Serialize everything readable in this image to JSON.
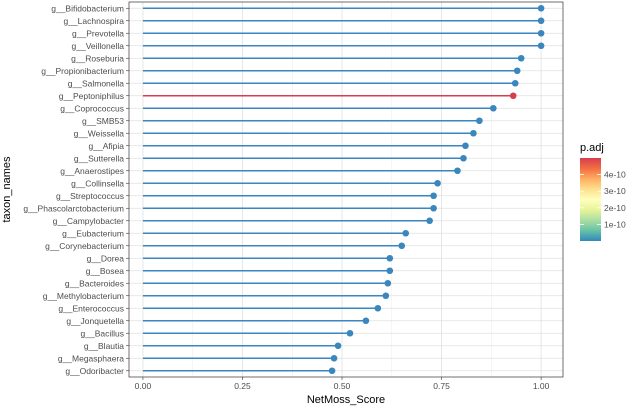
{
  "chart_data": {
    "type": "lollipop",
    "xlabel": "NetMoss_Score",
    "ylabel": "taxon_names",
    "xlim": [
      -0.035,
      1.055
    ],
    "x_ticks": [
      0.0,
      0.25,
      0.5,
      0.75,
      1.0
    ],
    "x_tick_labels": [
      "0.00",
      "0.25",
      "0.50",
      "0.75",
      "1.00"
    ],
    "grid": true,
    "colors": {
      "default_segment": "#3b86c0",
      "point": "#3a87bd",
      "highlight": "#d53e4f"
    },
    "legend": {
      "title": "p.adj",
      "placement": "right",
      "labels": [
        "4e-10",
        "3e-10",
        "2e-10",
        "1e-10"
      ],
      "label_values": [
        4e-10,
        3e-10,
        2e-10,
        1e-10
      ],
      "range": [
        0,
        5e-10
      ],
      "gradient": [
        "#3288bd",
        "#66c2a5",
        "#abdda4",
        "#e6f598",
        "#ffffbf",
        "#fee08b",
        "#fdae61",
        "#f46d43",
        "#d53e4f"
      ]
    },
    "taxa": [
      {
        "name": "g__Bifidobacterium",
        "value": 1.0,
        "highlight": false
      },
      {
        "name": "g__Lachnospira",
        "value": 1.0,
        "highlight": false
      },
      {
        "name": "g__Prevotella",
        "value": 1.0,
        "highlight": false
      },
      {
        "name": "g__Veillonella",
        "value": 1.0,
        "highlight": false
      },
      {
        "name": "g__Roseburia",
        "value": 0.95,
        "highlight": false
      },
      {
        "name": "g__Propionibacterium",
        "value": 0.94,
        "highlight": false
      },
      {
        "name": "g__Salmonella",
        "value": 0.935,
        "highlight": false
      },
      {
        "name": "g__Peptoniphilus",
        "value": 0.93,
        "highlight": true
      },
      {
        "name": "g__Coprococcus",
        "value": 0.88,
        "highlight": false
      },
      {
        "name": "g__SMB53",
        "value": 0.845,
        "highlight": false
      },
      {
        "name": "g__Weissella",
        "value": 0.83,
        "highlight": false
      },
      {
        "name": "g__Afipia",
        "value": 0.81,
        "highlight": false
      },
      {
        "name": "g__Sutterella",
        "value": 0.805,
        "highlight": false
      },
      {
        "name": "g__Anaerostipes",
        "value": 0.79,
        "highlight": false
      },
      {
        "name": "g__Collinsella",
        "value": 0.74,
        "highlight": false
      },
      {
        "name": "g__Streptococcus",
        "value": 0.73,
        "highlight": false
      },
      {
        "name": "g__Phascolarctobacterium",
        "value": 0.73,
        "highlight": false
      },
      {
        "name": "g__Campylobacter",
        "value": 0.72,
        "highlight": false
      },
      {
        "name": "g__Eubacterium",
        "value": 0.66,
        "highlight": false
      },
      {
        "name": "g__Corynebacterium",
        "value": 0.65,
        "highlight": false
      },
      {
        "name": "g__Dorea",
        "value": 0.62,
        "highlight": false
      },
      {
        "name": "g__Bosea",
        "value": 0.62,
        "highlight": false
      },
      {
        "name": "g__Bacteroides",
        "value": 0.615,
        "highlight": false
      },
      {
        "name": "g__Methylobacterium",
        "value": 0.61,
        "highlight": false
      },
      {
        "name": "g__Enterococcus",
        "value": 0.59,
        "highlight": false
      },
      {
        "name": "g__Jonquetella",
        "value": 0.56,
        "highlight": false
      },
      {
        "name": "g__Bacillus",
        "value": 0.52,
        "highlight": false
      },
      {
        "name": "g__Blautia",
        "value": 0.49,
        "highlight": false
      },
      {
        "name": "g__Megasphaera",
        "value": 0.48,
        "highlight": false
      },
      {
        "name": "g__Odoribacter",
        "value": 0.475,
        "highlight": false
      }
    ]
  }
}
